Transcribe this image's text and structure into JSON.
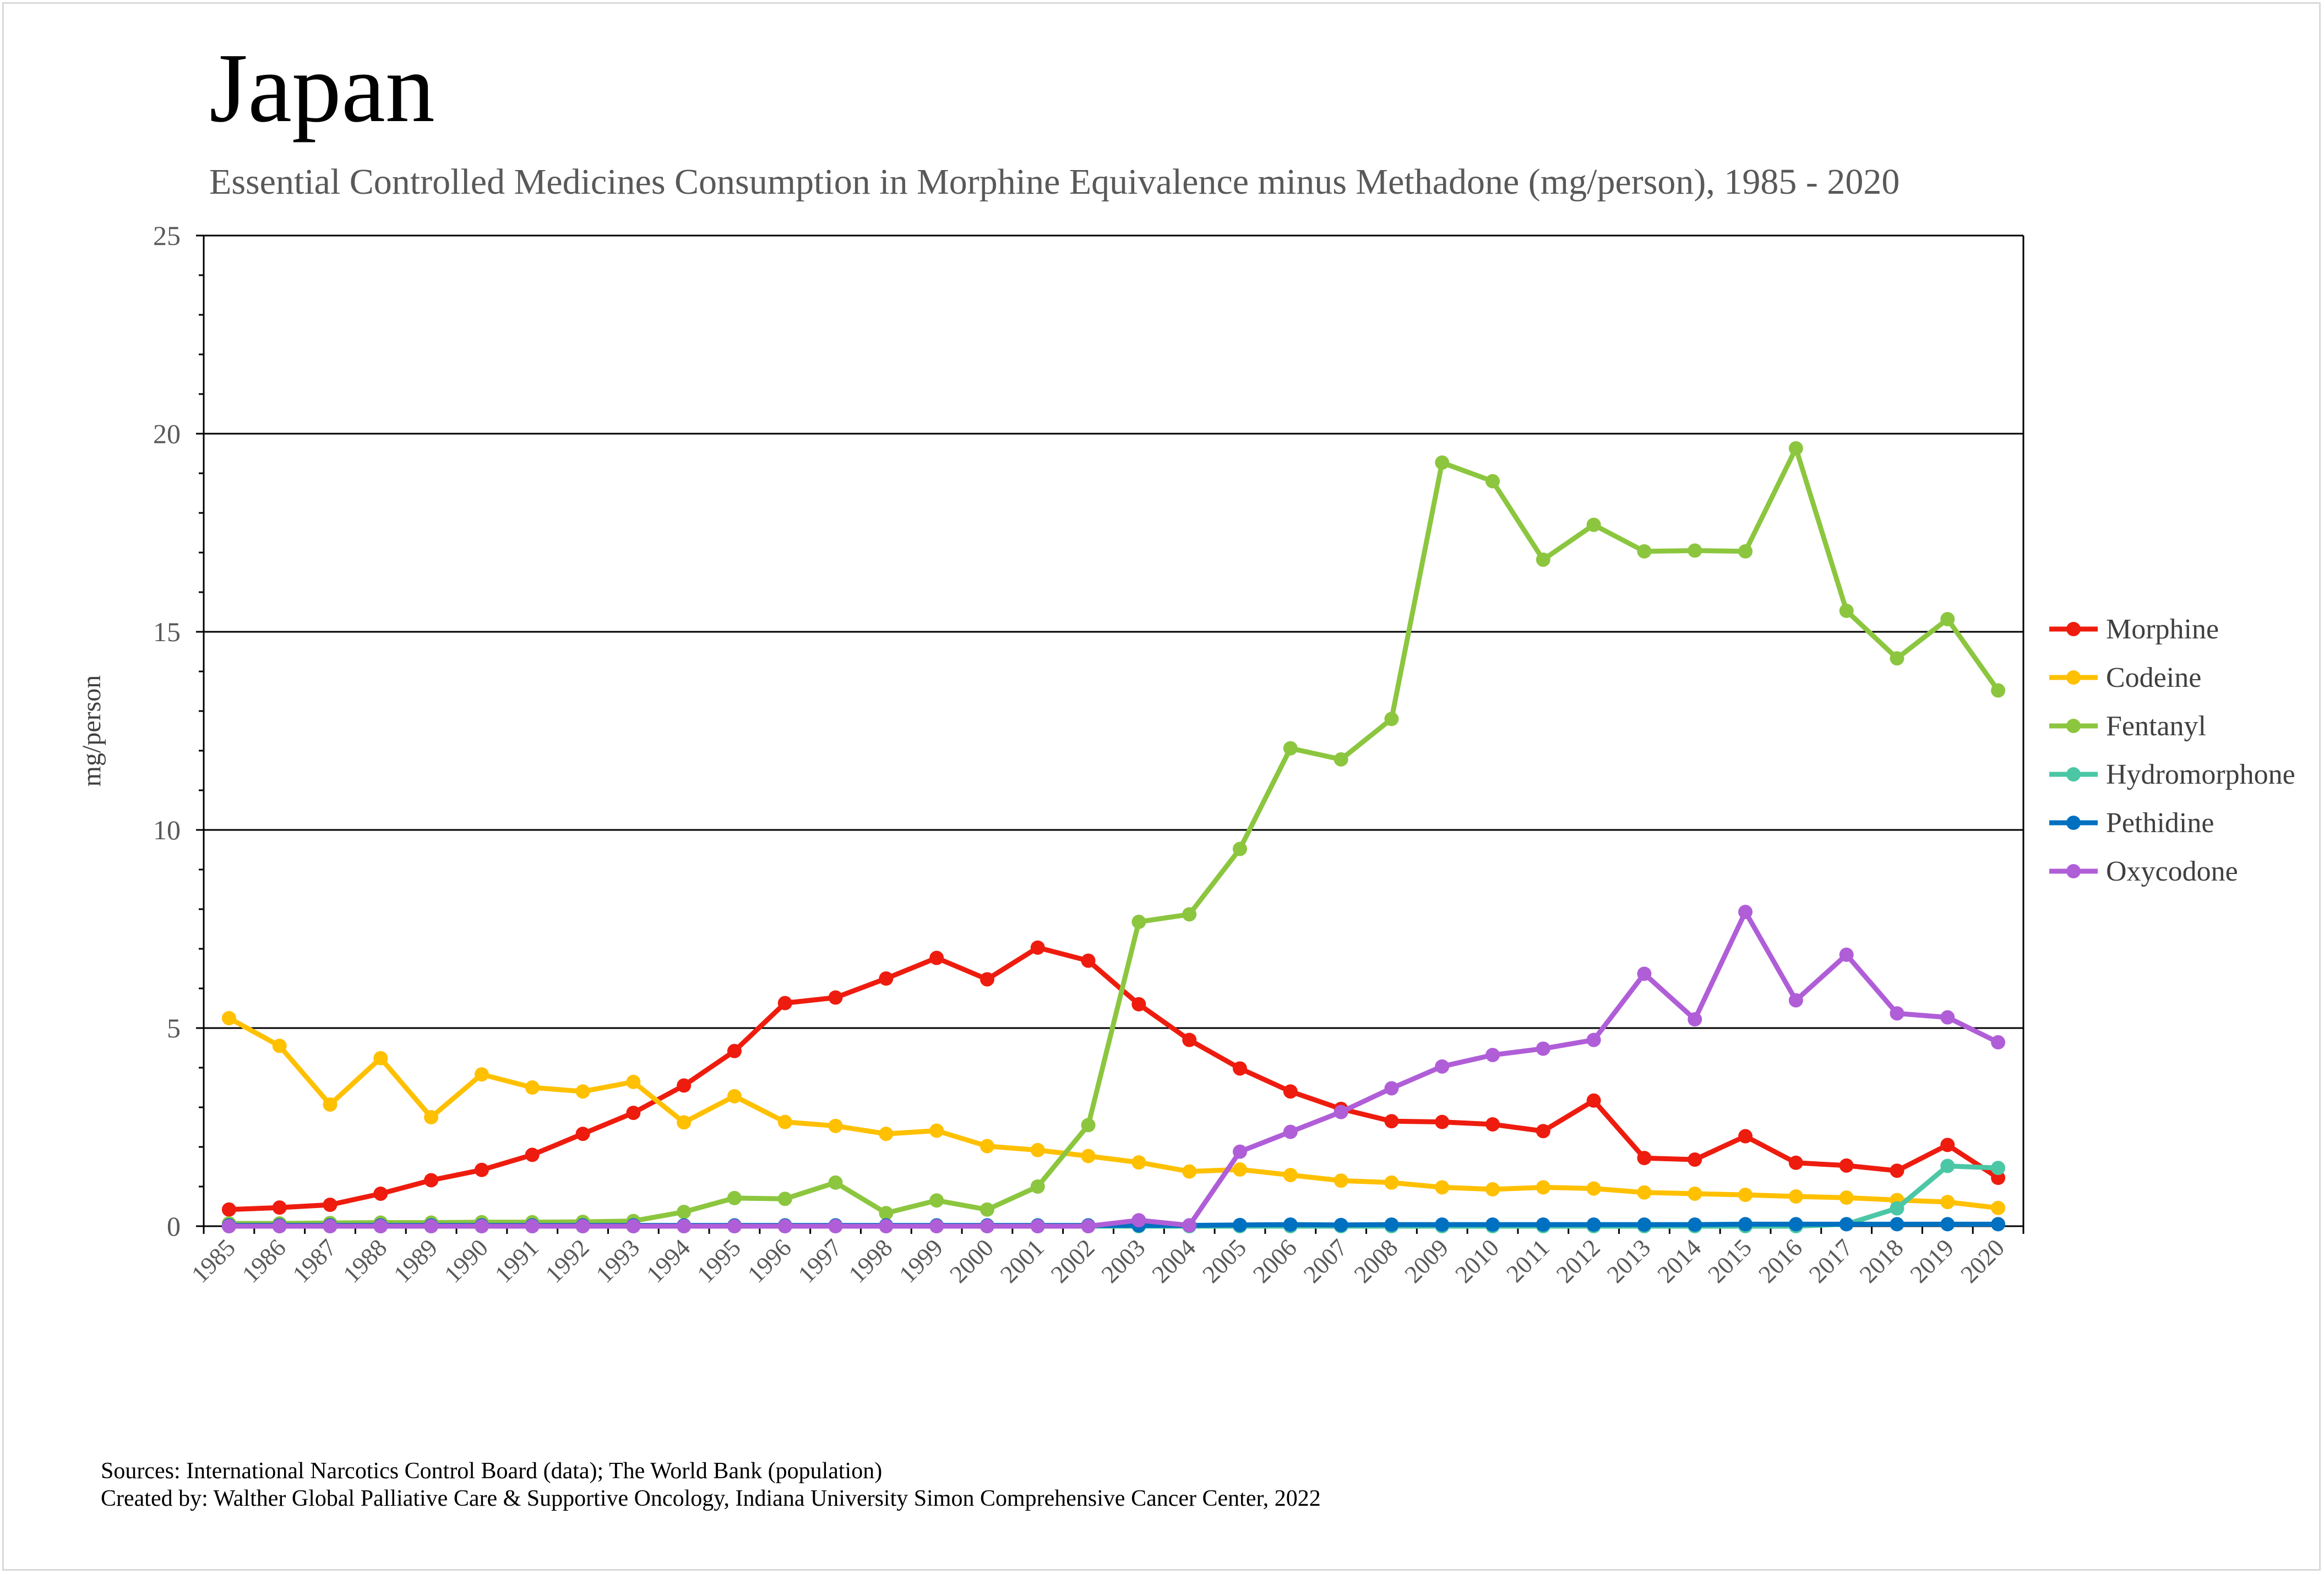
{
  "title": "Japan",
  "subtitle": "Essential Controlled Medicines Consumption in Morphine Equivalence minus Methadone (mg/person), 1985 - 2020",
  "sources": {
    "line1": "Sources: International Narcotics Control Board (data); The World Bank (population)",
    "line2": "Created by: Walther Global Palliative Care & Supportive Oncology, Indiana University Simon Comprehensive Cancer Center, 2022"
  },
  "chart_data": {
    "type": "line",
    "title": "Japan",
    "subtitle": "Essential Controlled Medicines Consumption in Morphine Equivalence minus Methadone (mg/person), 1985 - 2020",
    "xlabel": "",
    "ylabel": "mg/person",
    "ylim": [
      0,
      25
    ],
    "yticks": [
      0,
      5,
      10,
      15,
      20,
      25
    ],
    "grid": "horizontal major gridlines",
    "legend_position": "right",
    "categories": [
      "1985",
      "1986",
      "1987",
      "1988",
      "1989",
      "1990",
      "1991",
      "1992",
      "1993",
      "1994",
      "1995",
      "1996",
      "1997",
      "1998",
      "1999",
      "2000",
      "2001",
      "2002",
      "2003",
      "2004",
      "2005",
      "2006",
      "2007",
      "2008",
      "2009",
      "2010",
      "2011",
      "2012",
      "2013",
      "2014",
      "2015",
      "2016",
      "2017",
      "2018",
      "2019",
      "2020"
    ],
    "series": [
      {
        "name": "Morphine",
        "color": "#ee1c0e",
        "values": [
          0.42,
          0.47,
          0.54,
          0.82,
          1.16,
          1.42,
          1.8,
          2.33,
          2.86,
          3.55,
          4.42,
          5.63,
          5.77,
          6.25,
          6.77,
          6.23,
          7.03,
          6.7,
          5.6,
          4.7,
          3.98,
          3.4,
          2.96,
          2.65,
          2.63,
          2.57,
          2.4,
          3.17,
          1.72,
          1.68,
          2.27,
          1.6,
          1.53,
          1.4,
          2.05,
          1.22
        ]
      },
      {
        "name": "Codeine",
        "color": "#ffc000",
        "values": [
          5.25,
          4.55,
          3.07,
          4.24,
          2.75,
          3.83,
          3.5,
          3.4,
          3.64,
          2.62,
          3.28,
          2.63,
          2.53,
          2.33,
          2.41,
          2.02,
          1.92,
          1.77,
          1.61,
          1.38,
          1.43,
          1.29,
          1.15,
          1.1,
          0.98,
          0.93,
          0.98,
          0.95,
          0.85,
          0.82,
          0.79,
          0.75,
          0.72,
          0.66,
          0.61,
          0.46
        ]
      },
      {
        "name": "Fentanyl",
        "color": "#8cc63f",
        "values": [
          0.07,
          0.07,
          0.08,
          0.09,
          0.09,
          0.1,
          0.1,
          0.11,
          0.13,
          0.36,
          0.71,
          0.69,
          1.1,
          0.33,
          0.65,
          0.42,
          1.0,
          2.55,
          7.68,
          7.87,
          9.52,
          12.06,
          11.78,
          12.8,
          19.27,
          18.8,
          16.82,
          17.7,
          17.03,
          17.05,
          17.03,
          19.63,
          15.53,
          14.33,
          15.32,
          13.52
        ]
      },
      {
        "name": "Hydromorphone",
        "color": "#4bc7a6",
        "values": [
          0,
          0,
          0,
          0,
          0,
          0,
          0,
          0,
          0,
          0,
          0,
          0,
          0,
          0,
          0,
          0,
          0,
          0,
          0,
          0,
          0,
          0,
          0,
          0,
          0,
          0,
          0,
          0,
          0,
          0,
          0,
          0,
          0.05,
          0.45,
          1.52,
          1.47
        ]
      },
      {
        "name": "Pethidine",
        "color": "#0070c0",
        "values": [
          0.02,
          0.02,
          0.02,
          0.02,
          0.02,
          0.02,
          0.02,
          0.02,
          0.02,
          0.02,
          0.02,
          0.02,
          0.02,
          0.02,
          0.02,
          0.02,
          0.02,
          0.02,
          0.02,
          0.02,
          0.03,
          0.04,
          0.03,
          0.04,
          0.04,
          0.04,
          0.04,
          0.04,
          0.04,
          0.04,
          0.05,
          0.05,
          0.05,
          0.05,
          0.05,
          0.05
        ]
      },
      {
        "name": "Oxycodone",
        "color": "#b05ed8",
        "values": [
          0,
          0,
          0,
          0,
          0,
          0,
          0,
          0,
          0,
          0,
          0,
          0,
          0,
          0,
          0,
          0,
          0,
          0,
          0.15,
          0.02,
          1.88,
          2.38,
          2.88,
          3.48,
          4.03,
          4.32,
          4.48,
          4.7,
          6.37,
          5.22,
          7.93,
          5.7,
          6.85,
          5.37,
          5.27,
          4.64
        ]
      }
    ]
  }
}
